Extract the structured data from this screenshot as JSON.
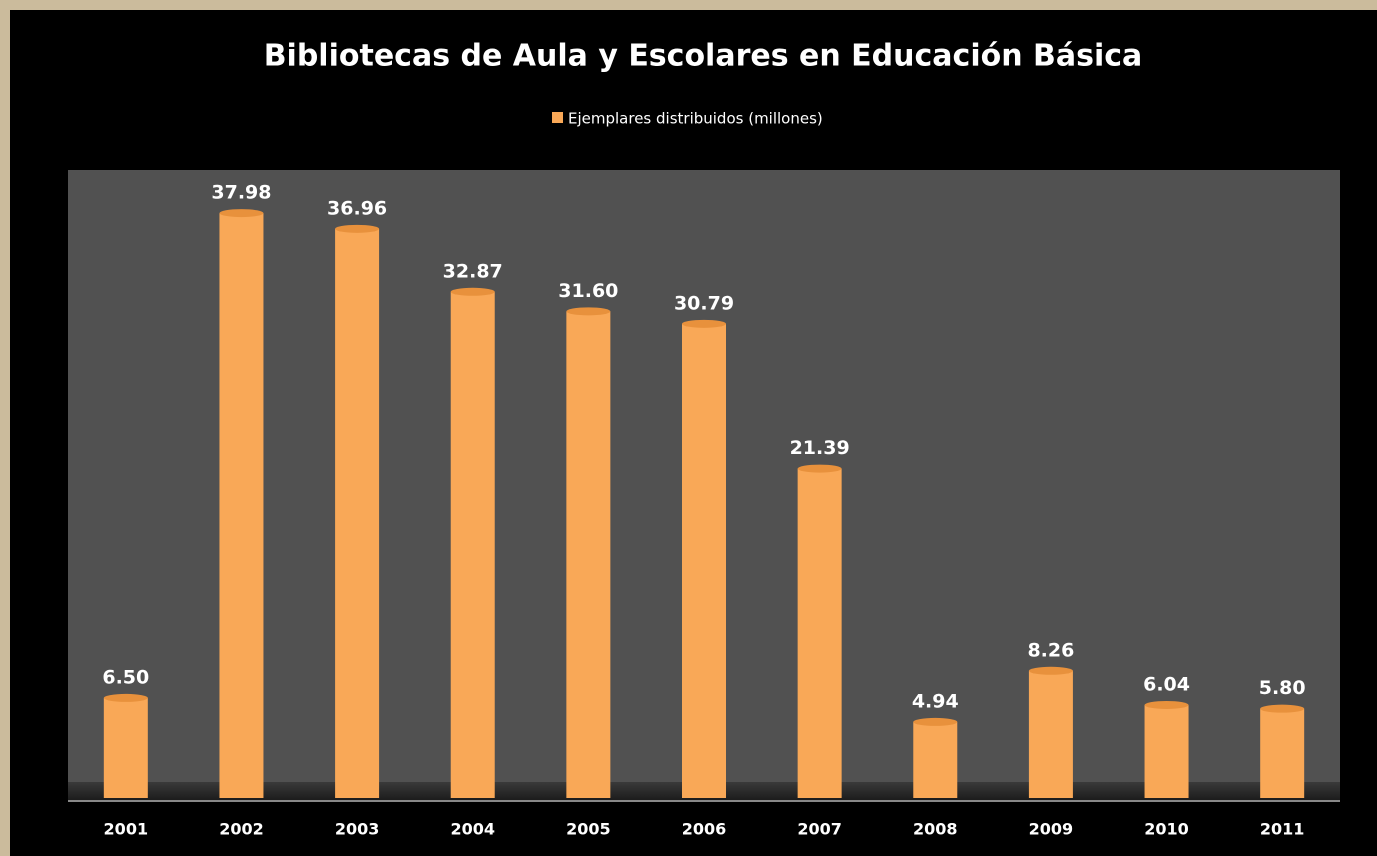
{
  "chart_data": {
    "type": "bar",
    "title": "Bibliotecas de Aula y Escolares en Educación Básica",
    "legend": "Ejemplares distribuidos (millones)",
    "categories": [
      "2001",
      "2002",
      "2003",
      "2004",
      "2005",
      "2006",
      "2007",
      "2008",
      "2009",
      "2010",
      "2011"
    ],
    "values": [
      6.5,
      37.98,
      36.96,
      32.87,
      31.6,
      30.79,
      21.39,
      4.94,
      8.26,
      6.04,
      5.8
    ],
    "value_labels": [
      "6.50",
      "37.98",
      "36.96",
      "32.87",
      "31.60",
      "30.79",
      "21.39",
      "4.94",
      "8.26",
      "6.04",
      "5.80"
    ],
    "color": "#f9a857",
    "ylim": [
      0,
      40
    ]
  }
}
